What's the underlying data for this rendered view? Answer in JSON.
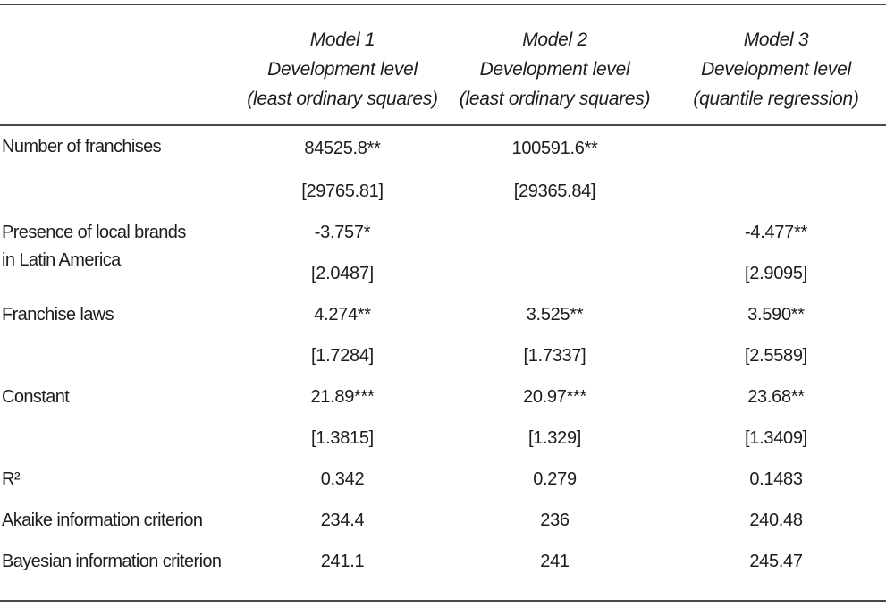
{
  "colors": {
    "text": "#1c1c1c",
    "rule": "#4a4a4a",
    "background": "#ffffff"
  },
  "table": {
    "columns": [
      {
        "model": "",
        "subtitle": "",
        "method": ""
      },
      {
        "model": "Model 1",
        "subtitle": "Development level",
        "method": "(least ordinary squares)"
      },
      {
        "model": "Model 2",
        "subtitle": "Development level",
        "method": "(least ordinary squares)"
      },
      {
        "model": "Model 3",
        "subtitle": "Development level",
        "method": "(quantile regression)"
      }
    ],
    "body": [
      {
        "label": "Number of franchises",
        "label2": "",
        "c1": "84525.8**",
        "c2": "100591.6**",
        "c3": ""
      },
      {
        "label": "",
        "label2": "",
        "c1": "[29765.81]",
        "c2": "[29365.84]",
        "c3": ""
      },
      {
        "label": "Presence of local brands",
        "label2": "in Latin America",
        "c1": "-3.757*",
        "c2": "",
        "c3": "-4.477**"
      },
      {
        "label": "",
        "label2": "",
        "c1": "[2.0487]",
        "c2": "",
        "c3": "[2.9095]"
      },
      {
        "label": "Franchise laws",
        "label2": "",
        "c1": "4.274**",
        "c2": "3.525**",
        "c3": "3.590**"
      },
      {
        "label": "",
        "label2": "",
        "c1": "[1.7284]",
        "c2": "[1.7337]",
        "c3": "[2.5589]"
      },
      {
        "label": "Constant",
        "label2": "",
        "c1": "21.89***",
        "c2": "20.97***",
        "c3": "23.68**"
      },
      {
        "label": "",
        "label2": "",
        "c1": "[1.3815]",
        "c2": "[1.329]",
        "c3": "[1.3409]"
      },
      {
        "label": "R²",
        "label2": "",
        "c1": "0.342",
        "c2": "0.279",
        "c3": "0.1483"
      },
      {
        "label": "Akaike information criterion",
        "label2": "",
        "c1": "234.4",
        "c2": "236",
        "c3": "240.48"
      },
      {
        "label": "Bayesian information criterion",
        "label2": "",
        "c1": "241.1",
        "c2": "241",
        "c3": "245.47"
      }
    ]
  }
}
